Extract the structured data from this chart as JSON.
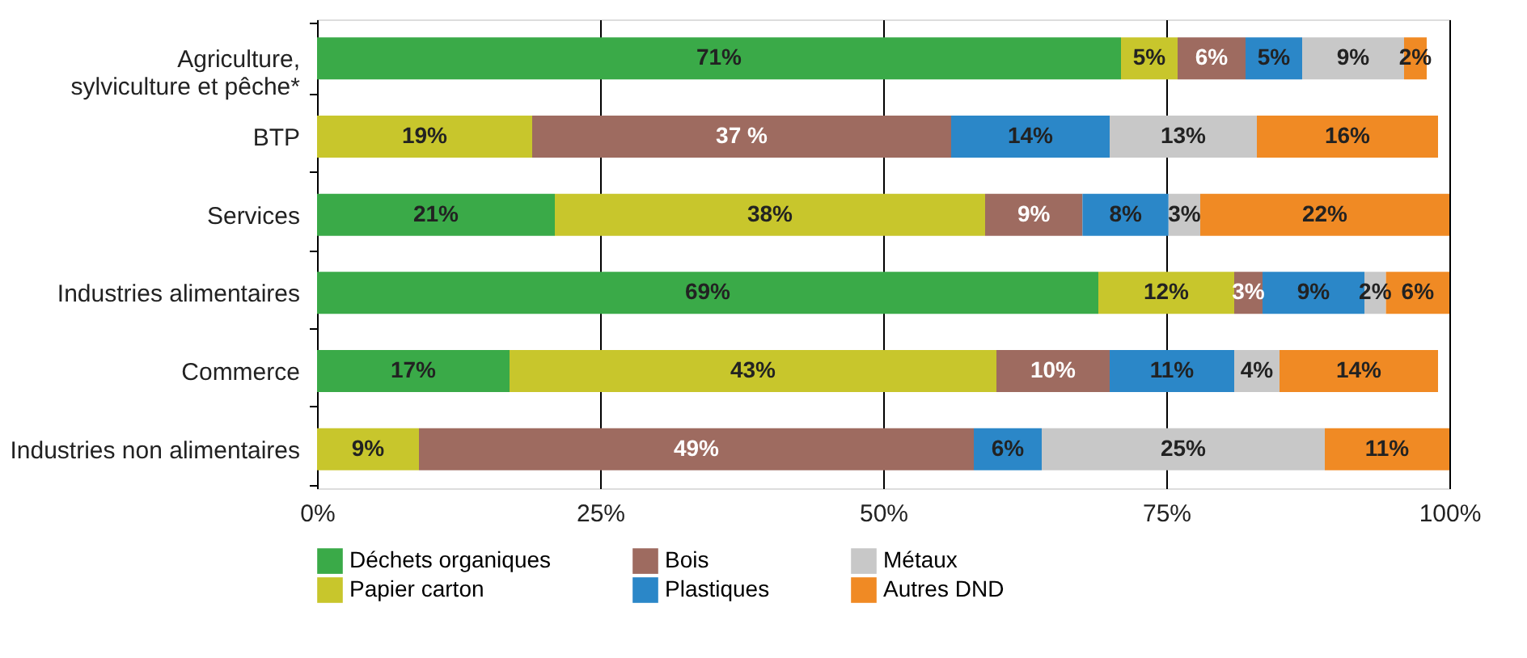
{
  "chart_data": {
    "type": "bar",
    "orientation": "horizontal",
    "stacked": true,
    "categories": [
      "Agriculture,\nsylviculture et pêche*",
      "BTP",
      "Services",
      "Industries alimentaires",
      "Commerce",
      "Industries non alimentaires"
    ],
    "series": [
      {
        "name": "Déchets organiques",
        "color": "#3aaa48",
        "values": [
          71,
          null,
          21,
          69,
          17,
          null
        ],
        "value_labels": [
          "71%",
          null,
          "21%",
          "69%",
          "17%",
          null
        ]
      },
      {
        "name": "Papier carton",
        "color": "#c8c62c",
        "values": [
          5,
          19,
          38,
          12,
          43,
          9
        ],
        "value_labels": [
          "5%",
          "19%",
          "38%",
          "12%",
          "43%",
          "9%"
        ]
      },
      {
        "name": "Bois",
        "color": "#9e6b60",
        "values": [
          6,
          37,
          8.6,
          2.5,
          10,
          49
        ],
        "value_labels": [
          "6%",
          "37 %",
          "9%",
          "3%",
          "10%",
          "49%"
        ]
      },
      {
        "name": "Plastiques",
        "color": "#2b87c8",
        "values": [
          5,
          14,
          7.6,
          9,
          11,
          6
        ],
        "value_labels": [
          "5%",
          "14%",
          "8%",
          "9%",
          "11%",
          "6%"
        ]
      },
      {
        "name": "Métaux",
        "color": "#c8c8c8",
        "values": [
          9,
          13,
          2.8,
          1.9,
          4,
          25
        ],
        "value_labels": [
          "9%",
          "13%",
          "3%",
          "2%",
          "4%",
          "25%"
        ]
      },
      {
        "name": "Autres DND",
        "color": "#f08a24",
        "values": [
          2,
          16,
          22,
          5.6,
          14,
          11
        ],
        "value_labels": [
          "2%",
          "16%",
          "22%",
          "6%",
          "14%",
          "11%"
        ]
      }
    ],
    "xlim": [
      0,
      100
    ],
    "xticks": [
      {
        "value": 0,
        "label": "0%"
      },
      {
        "value": 25,
        "label": "25%"
      },
      {
        "value": 50,
        "label": "50%"
      },
      {
        "value": 75,
        "label": "75%"
      },
      {
        "value": 100,
        "label": "100%"
      }
    ],
    "grid": "x",
    "legend": "bottom"
  }
}
